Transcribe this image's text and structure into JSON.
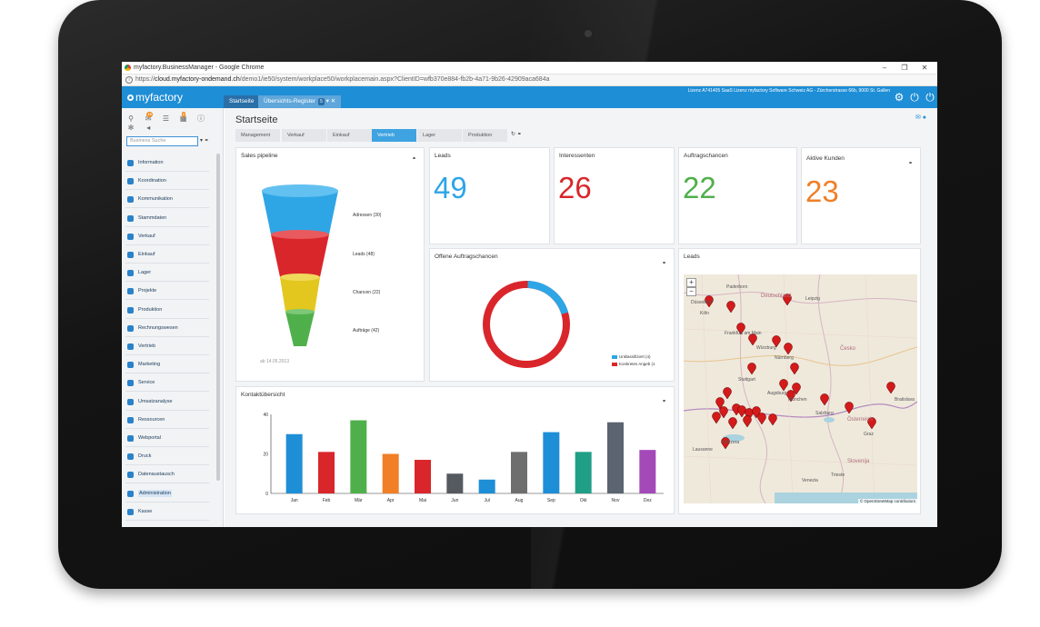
{
  "browser": {
    "window_title": "myfactory.BusinessManager - Google Chrome",
    "url_prefix": "https://",
    "url_host": "cloud.myfactory-ondemand.ch",
    "url_path": "/demo1/ie50/system/workplace50/workplacemain.aspx?ClientID=wfb370e884-fb2b-4a71-9b26-42909aca684a"
  },
  "header": {
    "logo": "myfactory",
    "tabs": [
      {
        "label": "Startseite"
      },
      {
        "label": "Übersichts-Register",
        "badge": "5"
      }
    ],
    "licence": "Lizenz A741405 SaaS Lizenz myfactory Software Schweiz AG - Zürcherstrasse 66b, 9000 St. Gallen"
  },
  "sidebar": {
    "badges": [
      "15",
      "2"
    ],
    "search_placeholder": "Business Suche",
    "items": [
      {
        "label": "Information"
      },
      {
        "label": "Koordination"
      },
      {
        "label": "Kommunikation"
      },
      {
        "label": "Stammdaten"
      },
      {
        "label": "Verkauf"
      },
      {
        "label": "Einkauf"
      },
      {
        "label": "Lager"
      },
      {
        "label": "Projekte"
      },
      {
        "label": "Produktion"
      },
      {
        "label": "Rechnungswesen"
      },
      {
        "label": "Vertrieb"
      },
      {
        "label": "Marketing"
      },
      {
        "label": "Service"
      },
      {
        "label": "Umsatzanalyse"
      },
      {
        "label": "Ressourcen"
      },
      {
        "label": "Webportal"
      },
      {
        "label": "Druck"
      },
      {
        "label": "Datenaustausch"
      },
      {
        "label": "Administration"
      },
      {
        "label": "Kasse"
      }
    ]
  },
  "main": {
    "title": "Startseite",
    "tabs": [
      {
        "label": "Management"
      },
      {
        "label": "Verkauf"
      },
      {
        "label": "Einkauf"
      },
      {
        "label": "Vertrieb"
      },
      {
        "label": "Lager"
      },
      {
        "label": "Produktion"
      }
    ],
    "active_tab": "Vertrieb",
    "sales_pipeline": {
      "title": "Sales pipeline",
      "stages": [
        {
          "label": "Adressen (30)",
          "color": "#2ea6e6"
        },
        {
          "label": "Leads (48)",
          "color": "#d9262b"
        },
        {
          "label": "Chancen (22)",
          "color": "#e3c71e"
        },
        {
          "label": "Aufträge (42)",
          "color": "#4fb04b"
        }
      ],
      "footnote": "ab 14.05.2013"
    },
    "kpis": [
      {
        "title": "Leads",
        "value": "49",
        "color": "#2ea6e6"
      },
      {
        "title": "Interessenten",
        "value": "26",
        "color": "#d9262b"
      },
      {
        "title": "Auftragschancen",
        "value": "22",
        "color": "#4fb04b"
      },
      {
        "title": "Aktive Kunden",
        "value": "23",
        "color": "#f07f27"
      }
    ],
    "offene": {
      "title": "Offene Auftragschancen",
      "legend": [
        {
          "label": "Unklassifiziert (4)",
          "color": "#2ea6e6"
        },
        {
          "label": "Konkretes Angeb (1",
          "color": "#d9262b"
        }
      ]
    },
    "kontakt": {
      "title": "Kontaktübersicht"
    },
    "leads_map": {
      "title": "Leads",
      "labels": {
        "deutschland": "Deutschland",
        "leipzig": "Leipzig",
        "frankfurt": "Frankfurt am Main",
        "nurnberg": "Nürnberg",
        "stuttgart": "Stuttgart",
        "munchen": "München",
        "cesko": "Česko",
        "osterreich": "Österreich",
        "slovenija": "Slovenija",
        "bratislava": "Bratislava",
        "salzburg": "Salzburg",
        "graz": "Graz",
        "lausanne": "Lausanne",
        "venezia": "Venezia",
        "trieste": "Trieste",
        "paderborn": "Paderborn",
        "koln": "Köln",
        "dusseldorf": "Düsseldorf",
        "wurzburg": "Würzburg",
        "augsburg": "Augsburg",
        "svizzera": "Svizzera"
      },
      "zoom_in": "+",
      "zoom_out": "−",
      "attribution": "© OpenStreetMap contributors"
    }
  },
  "chart_data": {
    "type": "bar",
    "categories": [
      "Jan",
      "Feb",
      "Mär",
      "Apr",
      "Mai",
      "Jun",
      "Jul",
      "Aug",
      "Sep",
      "Okt",
      "Nov",
      "Dez"
    ],
    "values": [
      30,
      21,
      37,
      20,
      17,
      10,
      7,
      21,
      31,
      21,
      36,
      22
    ],
    "colors": [
      "#1e8ed6",
      "#d9262b",
      "#4fb04b",
      "#f07f27",
      "#d9262b",
      "#555a60",
      "#1e8ed6",
      "#6e6e6e",
      "#1e8ed6",
      "#1f9f86",
      "#5b6470",
      "#a34ab8"
    ],
    "yticks": [
      0,
      20,
      40
    ],
    "ylim": [
      0,
      40
    ],
    "grid": false
  }
}
